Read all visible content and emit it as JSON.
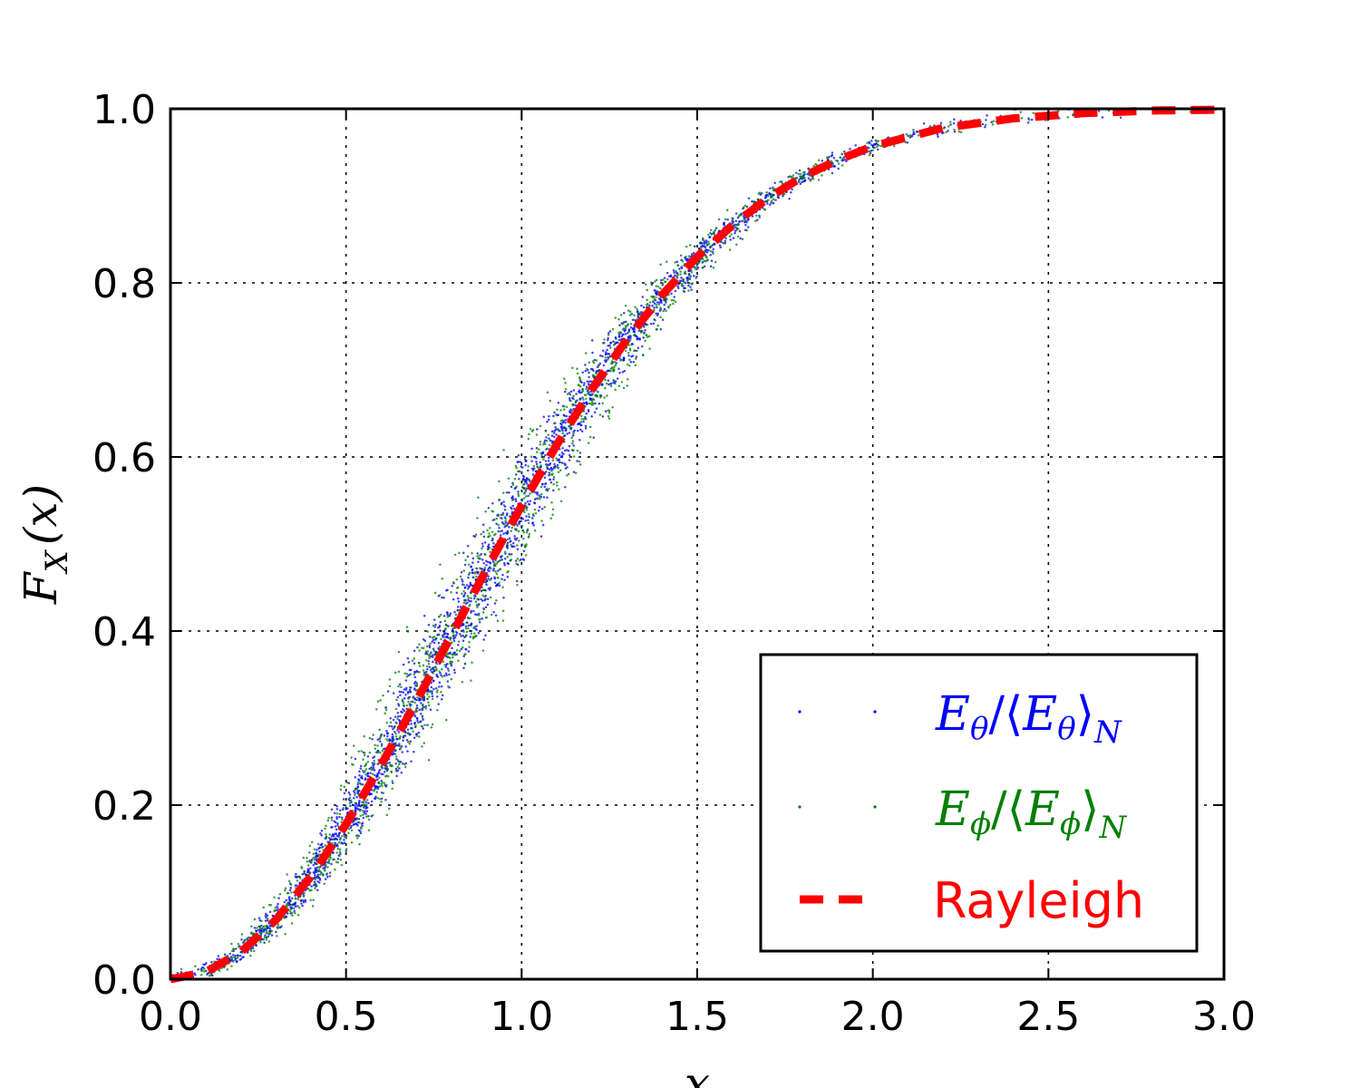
{
  "chart_data": {
    "type": "scatter",
    "xlim": [
      0.0,
      3.0
    ],
    "ylim": [
      0.0,
      1.0
    ],
    "xlabel": "x",
    "ylabel": {
      "base": "F",
      "sub": "X",
      "arg": "(x)"
    },
    "xticks": [
      "0.0",
      "0.5",
      "1.0",
      "1.5",
      "2.0",
      "2.5",
      "3.0"
    ],
    "yticks": [
      "0.0",
      "0.2",
      "0.4",
      "0.6",
      "0.8",
      "1.0"
    ],
    "grid": true,
    "legend_position": "lower-right",
    "series": [
      {
        "name": "E_θ/⟨E_θ⟩_N",
        "label": {
          "E": "E",
          "sub": "θ",
          "slash": "/",
          "open": "⟨",
          "close": "⟩",
          "outer_sub": "N"
        },
        "style": "points",
        "color": "#0000ff",
        "description": "empirical CDF samples spread around the Rayleigh curve",
        "envelope": {
          "x": [
            0.0,
            0.25,
            0.5,
            0.75,
            1.0,
            1.25,
            1.5,
            1.75,
            2.0,
            2.5
          ],
          "y_center": [
            0.0,
            0.05,
            0.18,
            0.38,
            0.58,
            0.76,
            0.88,
            0.95,
            0.98,
            1.0
          ]
        }
      },
      {
        "name": "E_φ/⟨E_φ⟩_N",
        "label": {
          "E": "E",
          "sub": "ϕ",
          "slash": "/",
          "open": "⟨",
          "close": "⟩",
          "outer_sub": "N"
        },
        "style": "points",
        "color": "#008000",
        "description": "empirical CDF samples spread around the Rayleigh curve",
        "envelope": {
          "x": [
            0.0,
            0.25,
            0.5,
            0.75,
            1.0,
            1.25,
            1.5,
            1.75,
            2.0,
            2.5
          ],
          "y_center": [
            0.0,
            0.05,
            0.18,
            0.38,
            0.58,
            0.76,
            0.88,
            0.95,
            0.98,
            1.0
          ]
        }
      },
      {
        "name": "Rayleigh",
        "style": "dashed-line",
        "color": "#ff0000",
        "x": [
          0.0,
          0.1,
          0.2,
          0.3,
          0.4,
          0.5,
          0.6,
          0.7,
          0.8,
          0.9,
          1.0,
          1.1,
          1.2,
          1.3,
          1.4,
          1.5,
          1.6,
          1.7,
          1.8,
          1.9,
          2.0,
          2.2,
          2.4,
          2.6,
          2.8,
          3.0
        ],
        "y": [
          0.0,
          0.008,
          0.031,
          0.068,
          0.118,
          0.178,
          0.246,
          0.319,
          0.395,
          0.471,
          0.544,
          0.614,
          0.678,
          0.735,
          0.786,
          0.83,
          0.866,
          0.897,
          0.922,
          0.941,
          0.957,
          0.978,
          0.989,
          0.995,
          0.998,
          0.999
        ]
      }
    ]
  }
}
